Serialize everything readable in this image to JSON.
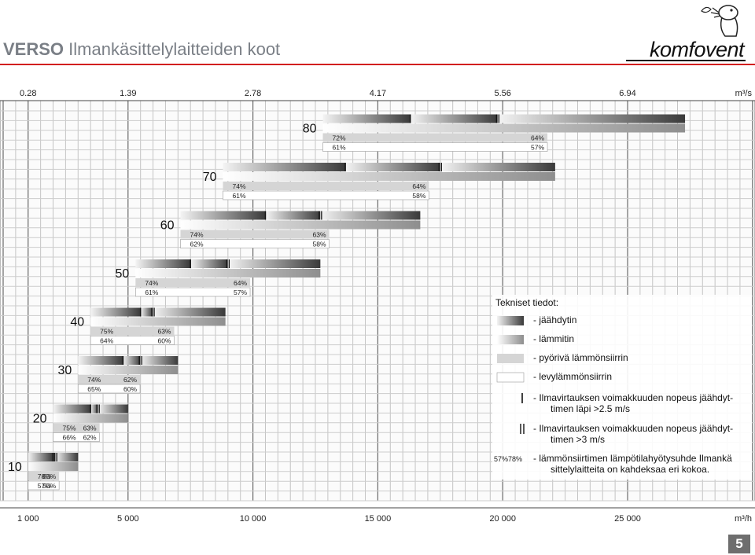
{
  "header": {
    "title_bold": "VERSO",
    "title_rest": " Ilmankäsittelylaitteiden koot",
    "brand": "komfovent"
  },
  "page_number": "5",
  "chart_data": {
    "type": "bar",
    "orientation": "horizontal",
    "x_units_bottom": "m³/h",
    "x_units_top": "m³/s",
    "xlim": [
      0,
      30000
    ],
    "bottom_ticks": [
      {
        "v": 1000,
        "label": "1 000"
      },
      {
        "v": 5000,
        "label": "5 000"
      },
      {
        "v": 10000,
        "label": "10 000"
      },
      {
        "v": 15000,
        "label": "15 000"
      },
      {
        "v": 20000,
        "label": "20 000"
      },
      {
        "v": 25000,
        "label": "25 000"
      }
    ],
    "top_ticks": [
      {
        "v": 1000,
        "label": "0.28"
      },
      {
        "v": 5000,
        "label": "1.39"
      },
      {
        "v": 10000,
        "label": "2.78"
      },
      {
        "v": 15000,
        "label": "4.17"
      },
      {
        "v": 20000,
        "label": "5.56"
      },
      {
        "v": 25000,
        "label": "6.94"
      }
    ],
    "grid": true,
    "units": [
      {
        "size": "10",
        "start": 1000,
        "m1": 2000,
        "m2": 2100,
        "end": 3000,
        "rot_l": "78%",
        "rot_r": "63%",
        "plate_l": "57%",
        "plate_r": "50%"
      },
      {
        "size": "20",
        "start": 2000,
        "m1": 3500,
        "m2": 3800,
        "end": 5000,
        "rot_l": "75%",
        "rot_r": "63%",
        "plate_l": "66%",
        "plate_r": "62%"
      },
      {
        "size": "30",
        "start": 3000,
        "m1": 4800,
        "m2": 5500,
        "end": 7000,
        "rot_l": "74%",
        "rot_r": "62%",
        "plate_l": "65%",
        "plate_r": "60%"
      },
      {
        "size": "40",
        "start": 3500,
        "m1": 5500,
        "m2": 6000,
        "end": 8900,
        "rot_l": "75%",
        "rot_r": "63%",
        "plate_l": "64%",
        "plate_r": "60%"
      },
      {
        "size": "50",
        "start": 5300,
        "m1": 7500,
        "m2": 9000,
        "end": 12700,
        "rot_l": "74%",
        "rot_r": "64%",
        "plate_l": "61%",
        "plate_r": "57%"
      },
      {
        "size": "60",
        "start": 7100,
        "m1": 10500,
        "m2": 12700,
        "end": 16700,
        "rot_l": "74%",
        "rot_r": "63%",
        "plate_l": "62%",
        "plate_r": "58%"
      },
      {
        "size": "70",
        "start": 8800,
        "m1": 13700,
        "m2": 17500,
        "end": 22100,
        "rot_l": "74%",
        "rot_r": "64%",
        "plate_l": "61%",
        "plate_r": "58%"
      },
      {
        "size": "80",
        "start": 12800,
        "m1": 16300,
        "m2": 19800,
        "end": 27300,
        "rot_l": "72%",
        "rot_r": "64%",
        "plate_l": "61%",
        "plate_r": "57%"
      }
    ],
    "legend": {
      "title": "Tekniset tiedot:",
      "items": [
        {
          "swatch": "cooler",
          "label": "- jäähdytin"
        },
        {
          "swatch": "heater",
          "label": "- lämmitin"
        },
        {
          "swatch": "rotary",
          "label": "- pyörivä lämmönsiirrin"
        },
        {
          "swatch": "plate",
          "label": "- levylämmönsiirrin"
        },
        {
          "swatch": "single-mark",
          "label": "- Ilmavirtauksen voimakkuuden nopeus jäähdyt-",
          "label2": "timen läpi >2.5 m/s"
        },
        {
          "swatch": "double-mark",
          "label": "- Ilmavirtauksen voimakkuuden nopeus jäähdyt-",
          "label2": "timen >3 m/s"
        },
        {
          "swatch": "efficiency",
          "swatch_l": "57%",
          "swatch_r": "78%",
          "label": "- lämmönsiirtimen lämpötilahyötysuhde Ilmankä",
          "label2": "sittelylaitteita on kahdeksaa eri kokoa."
        }
      ]
    }
  }
}
